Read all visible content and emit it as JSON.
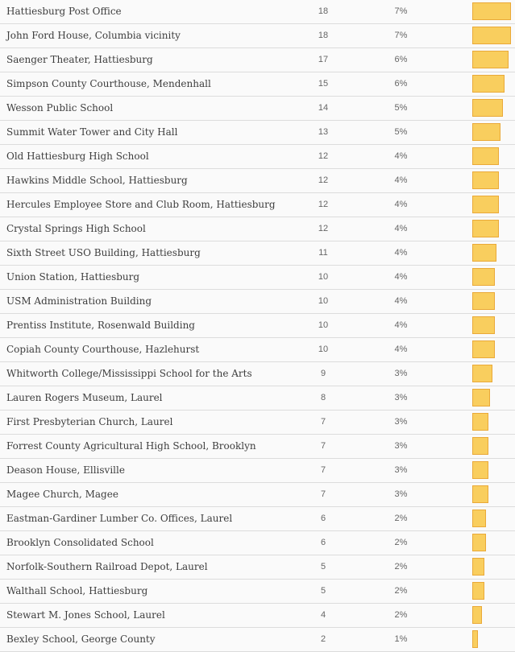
{
  "colors": {
    "bar_fill": "#F9CE5E",
    "bar_border": "#EAA938",
    "row_bg": "#FAFAFA",
    "separator": "#DCDCDC",
    "name_text": "#3D3D3D",
    "number_text": "#666666"
  },
  "chart_data": {
    "type": "bar",
    "orientation": "horizontal",
    "title": "",
    "xlabel": "",
    "ylabel": "",
    "legend": "none",
    "grid": false,
    "max_value": 18,
    "categories": [
      "Hattiesburg Post Office",
      "John Ford House, Columbia vicinity",
      "Saenger Theater, Hattiesburg",
      "Simpson County Courthouse, Mendenhall",
      "Wesson Public School",
      "Summit Water Tower and City Hall",
      "Old Hattiesburg High School",
      "Hawkins Middle School, Hattiesburg",
      "Hercules Employee Store and Club Room, Hattiesburg",
      "Crystal Springs High School",
      "Sixth Street USO Building, Hattiesburg",
      "Union Station, Hattiesburg",
      "USM Administration Building",
      "Prentiss Institute, Rosenwald Building",
      "Copiah County Courthouse, Hazlehurst",
      "Whitworth College/Mississippi School for the Arts",
      "Lauren Rogers Museum, Laurel",
      "First Presbyterian Church, Laurel",
      "Forrest County Agricultural High School, Brooklyn",
      "Deason House, Ellisville",
      "Magee Church, Magee",
      "Eastman-Gardiner Lumber Co. Offices, Laurel",
      "Brooklyn Consolidated School",
      "Norfolk-Southern Railroad Depot, Laurel",
      "Walthall School, Hattiesburg",
      "Stewart M. Jones School, Laurel",
      "Bexley School, George County"
    ],
    "values": [
      18,
      18,
      17,
      15,
      14,
      13,
      12,
      12,
      12,
      12,
      11,
      10,
      10,
      10,
      10,
      9,
      8,
      7,
      7,
      7,
      7,
      6,
      6,
      5,
      5,
      4,
      2
    ],
    "percent_labels": [
      "7%",
      "7%",
      "6%",
      "6%",
      "5%",
      "5%",
      "4%",
      "4%",
      "4%",
      "4%",
      "4%",
      "4%",
      "4%",
      "4%",
      "4%",
      "3%",
      "3%",
      "3%",
      "3%",
      "3%",
      "3%",
      "2%",
      "2%",
      "2%",
      "2%",
      "2%",
      "1%"
    ]
  }
}
